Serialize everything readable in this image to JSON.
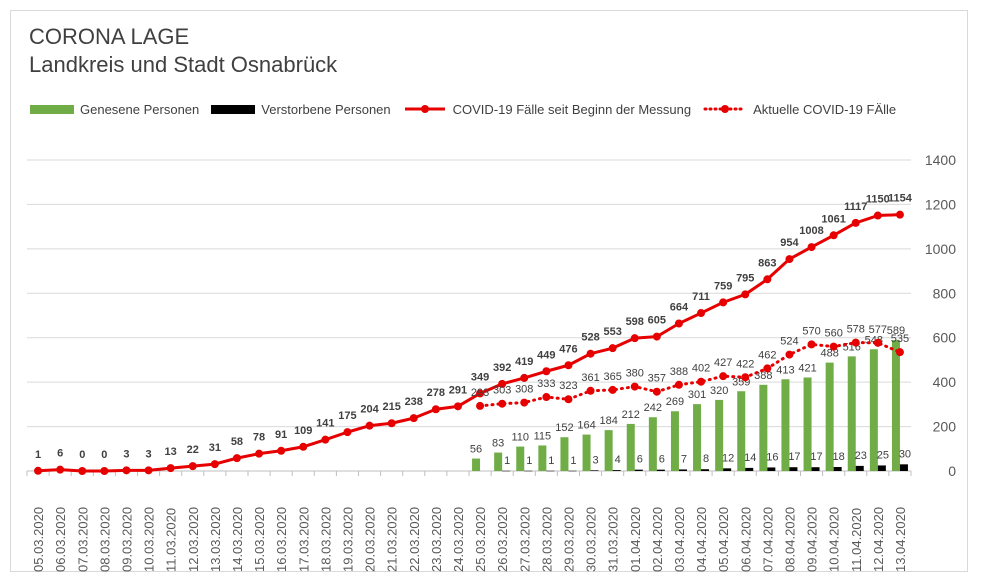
{
  "header": {
    "title": "CORONA LAGE",
    "subtitle": "Landkreis und Stadt Osnabrück"
  },
  "legend": {
    "items": [
      {
        "label": "Genesene Personen",
        "color": "#70ad47",
        "kind": "bar"
      },
      {
        "label": "Verstorbene Personen",
        "color": "#000000",
        "kind": "bar"
      },
      {
        "label": "COVID-19 Fälle seit Beginn der Messung",
        "color": "#e60000",
        "kind": "line"
      },
      {
        "label": "Aktuelle COVID-19 FÄlle",
        "color": "#e60000",
        "kind": "dotted"
      }
    ]
  },
  "chart_data": {
    "type": "bar",
    "title": "CORONA LAGE",
    "subtitle": "Landkreis und Stadt Osnabrück",
    "categories": [
      "05.03.2020",
      "06.03.2020",
      "07.03.2020",
      "08.03.2020",
      "09.03.2020",
      "10.03.2020",
      "11.03.2020",
      "12.03.2020",
      "13.03.2020",
      "14.03.2020",
      "15.03.2020",
      "16.03.2020",
      "17.03.2020",
      "18.03.2020",
      "19.03.2020",
      "20.03.2020",
      "21.03.2020",
      "22.03.2020",
      "23.03.2020",
      "24.03.2020",
      "25.03.2020",
      "26.03.2020",
      "27.03.2020",
      "28.03.2020",
      "29.03.2020",
      "30.03.2020",
      "31.03.2020",
      "01.04.2020",
      "02.04.2020",
      "03.04.2020",
      "04.04.2020",
      "05.04.2020",
      "06.04.2020",
      "07.04.2020",
      "08.04.2020",
      "09.04.2020",
      "10.04.2020",
      "11.04.2020",
      "12.04.2020",
      "13.04.2020"
    ],
    "series": [
      {
        "name": "Genesene Personen",
        "type": "bar",
        "color": "#70ad47",
        "values": [
          null,
          null,
          null,
          null,
          null,
          null,
          null,
          null,
          null,
          null,
          null,
          null,
          null,
          null,
          null,
          null,
          null,
          null,
          null,
          null,
          56,
          83,
          110,
          115,
          152,
          164,
          184,
          212,
          242,
          269,
          301,
          320,
          359,
          388,
          413,
          421,
          488,
          516,
          548,
          589
        ]
      },
      {
        "name": "Verstorbene Personen",
        "type": "bar",
        "color": "#000000",
        "values": [
          null,
          null,
          null,
          null,
          null,
          null,
          null,
          null,
          null,
          null,
          null,
          null,
          null,
          null,
          null,
          null,
          null,
          null,
          null,
          null,
          null,
          1,
          1,
          1,
          1,
          3,
          4,
          6,
          6,
          7,
          8,
          12,
          14,
          16,
          17,
          17,
          18,
          23,
          25,
          30
        ]
      },
      {
        "name": "COVID-19 Fälle seit Beginn der Messung",
        "type": "line",
        "color": "#e60000",
        "values": [
          1,
          6,
          0,
          0,
          3,
          3,
          13,
          22,
          31,
          58,
          78,
          91,
          109,
          141,
          175,
          204,
          215,
          238,
          278,
          291,
          349,
          392,
          419,
          449,
          476,
          528,
          553,
          598,
          605,
          664,
          711,
          759,
          795,
          863,
          954,
          1008,
          1061,
          1117,
          1150,
          1154
        ]
      },
      {
        "name": "Aktuelle COVID-19 FÄlle",
        "type": "line-dotted",
        "color": "#e60000",
        "values": [
          null,
          null,
          null,
          null,
          null,
          null,
          null,
          null,
          null,
          null,
          null,
          null,
          null,
          null,
          null,
          null,
          null,
          null,
          null,
          null,
          293,
          303,
          308,
          333,
          323,
          361,
          365,
          380,
          357,
          388,
          402,
          427,
          422,
          462,
          524,
          570,
          560,
          578,
          577,
          535
        ]
      }
    ],
    "y_axis": {
      "min": 0,
      "max": 1400,
      "ticks": [
        0,
        200,
        400,
        600,
        800,
        1000,
        1200,
        1400
      ],
      "position": "right"
    },
    "grid": true,
    "legend_position": "top"
  }
}
